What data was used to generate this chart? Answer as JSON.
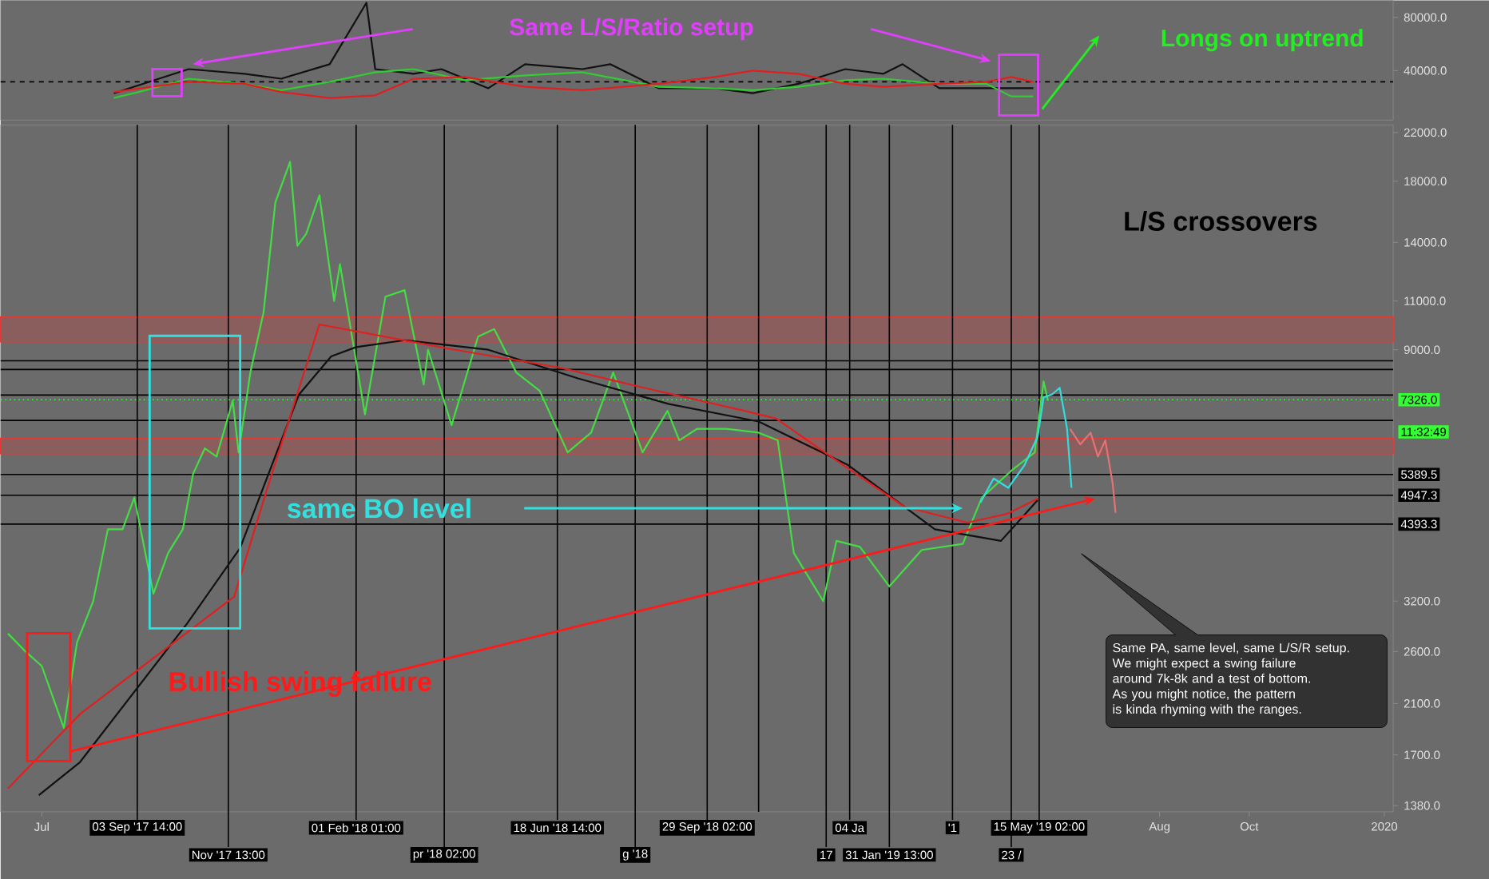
{
  "chart_data": [
    {
      "type": "line",
      "log": true,
      "xlim": [
        "2017-06-03",
        "2020-01-07"
      ],
      "ylim": [
        21000,
        100000
      ],
      "yticks": [
        {
          "value": 40000,
          "label": "40000.0"
        },
        {
          "value": 80000,
          "label": "80000.0"
        }
      ],
      "tick_labels": "y",
      "annotations": [
        "Same L/S/Ratio setup",
        "Longs on uptrend"
      ],
      "ref_lines": [
        {
          "axis": "y",
          "value": 34600,
          "line_style": "dashed",
          "color": "#000000"
        }
      ],
      "series": [
        {
          "color": "#111111",
          "x": [
            "2017-08-19",
            "2017-10-09",
            "2017-11-16",
            "2017-12-11",
            "2018-01-13",
            "2018-02-07",
            "2018-02-13",
            "2018-03-11",
            "2018-03-30",
            "2018-05-01",
            "2018-05-26",
            "2018-07-04",
            "2018-07-23",
            "2018-08-25",
            "2018-10-02",
            "2018-10-28",
            "2018-11-28",
            "2018-12-30",
            "2019-01-25",
            "2019-02-07",
            "2019-03-04",
            "2019-04-05",
            "2019-05-07"
          ],
          "values": [
            29800,
            40800,
            38400,
            36000,
            43500,
            96800,
            40800,
            38400,
            40800,
            31800,
            43500,
            40800,
            43500,
            31800,
            31800,
            29800,
            33700,
            40800,
            38400,
            43500,
            31800,
            31800,
            31800
          ]
        },
        {
          "color": "#33cc33",
          "x": [
            "2017-08-19",
            "2017-09-05",
            "2017-10-09",
            "2017-11-16",
            "2017-12-11",
            "2018-01-13",
            "2018-02-13",
            "2018-03-11",
            "2018-04-15",
            "2018-05-26",
            "2018-07-04",
            "2018-08-25",
            "2018-10-02",
            "2018-10-28",
            "2018-11-28",
            "2018-12-30",
            "2019-01-25",
            "2019-03-04",
            "2019-04-05",
            "2019-04-22",
            "2019-05-07"
          ],
          "values": [
            28000,
            30300,
            36000,
            33700,
            31000,
            34600,
            39200,
            40800,
            35300,
            37600,
            39200,
            32400,
            31800,
            31000,
            32400,
            35300,
            36000,
            33700,
            33700,
            28600,
            28600
          ]
        },
        {
          "color": "#e02020",
          "x": [
            "2017-08-19",
            "2017-10-09",
            "2017-11-16",
            "2017-12-11",
            "2018-01-13",
            "2018-02-13",
            "2018-03-11",
            "2018-04-15",
            "2018-05-26",
            "2018-07-04",
            "2018-08-25",
            "2018-10-02",
            "2018-10-28",
            "2018-11-28",
            "2018-12-30",
            "2019-01-25",
            "2019-03-04",
            "2019-04-05",
            "2019-04-22",
            "2019-05-07"
          ],
          "values": [
            30300,
            34600,
            33700,
            30300,
            28000,
            29000,
            36000,
            36800,
            32400,
            31000,
            33700,
            36800,
            40000,
            38400,
            33700,
            32400,
            33700,
            34600,
            36800,
            34600
          ]
        }
      ]
    },
    {
      "type": "line",
      "log": true,
      "xlim": [
        "2017-06-03",
        "2020-01-07"
      ],
      "ylim": [
        1345,
        22700
      ],
      "xticks": [
        {
          "value": "2017-07-01",
          "label": "Jul"
        },
        {
          "value": "2019-08-01",
          "label": "Aug"
        },
        {
          "value": "2019-10-01",
          "label": "Oct"
        },
        {
          "value": "2020-01-01",
          "label": "2020"
        }
      ],
      "yticks": [
        {
          "value": 1380,
          "label": "1380.0"
        },
        {
          "value": 1700,
          "label": "1700.0"
        },
        {
          "value": 2100,
          "label": "2100.0"
        },
        {
          "value": 2600,
          "label": "2600.0"
        },
        {
          "value": 3200,
          "label": "3200.0"
        },
        {
          "value": 9000,
          "label": "9000.0"
        },
        {
          "value": 11000,
          "label": "11000.0"
        },
        {
          "value": 14000,
          "label": "14000.0"
        },
        {
          "value": 18000,
          "label": "18000.0"
        },
        {
          "value": 22000,
          "label": "22000.0"
        }
      ],
      "annotations": [
        "L/S crossovers",
        "same BO level",
        "Bullish swing failure",
        "Same PA, same level, same L/S/R setup.",
        "We might expect a swing failure",
        " around 7k-8k and a test of bottom.",
        "As you might notice, the pattern",
        "is kinda rhyming with the ranges.",
        "11:32:49"
      ],
      "ref_lines": [
        {
          "axis": "x",
          "value": "2017-09-04",
          "label": "03 Sep '17 14:00",
          "color": "#000000"
        },
        {
          "axis": "x",
          "value": "2017-11-05",
          "label": "Nov '17 13:00",
          "color": "#000000"
        },
        {
          "axis": "x",
          "value": "2018-01-31",
          "label": "01 Feb '18 01:00",
          "color": "#000000"
        },
        {
          "axis": "x",
          "value": "2018-04-01",
          "label": "pr '18 02:00",
          "color": "#000000"
        },
        {
          "axis": "x",
          "value": "2018-06-17",
          "label": "18 Jun '18 14:00",
          "color": "#000000"
        },
        {
          "axis": "x",
          "value": "2018-08-09",
          "label": "g '18",
          "color": "#000000"
        },
        {
          "axis": "x",
          "value": "2018-09-27",
          "label": "29 Sep '18 02:00",
          "color": "#000000"
        },
        {
          "axis": "x",
          "value": "2018-11-01",
          "color": "#000000"
        },
        {
          "axis": "x",
          "value": "2018-12-17",
          "label": "17",
          "color": "#000000"
        },
        {
          "axis": "x",
          "value": "2019-01-02",
          "label": "04 Ja",
          "color": "#000000"
        },
        {
          "axis": "x",
          "value": "2019-01-29",
          "label": "31 Jan '19 13:00",
          "color": "#000000"
        },
        {
          "axis": "x",
          "value": "2019-03-13",
          "label": "'1",
          "color": "#000000"
        },
        {
          "axis": "x",
          "value": "2019-04-22",
          "label": "23 /",
          "color": "#000000"
        },
        {
          "axis": "x",
          "value": "2019-05-11",
          "label": "15 May '19 02:00",
          "color": "#000000"
        },
        {
          "axis": "y",
          "value": 8600,
          "color": "#000000"
        },
        {
          "axis": "y",
          "value": 8300,
          "color": "#000000"
        },
        {
          "axis": "y",
          "value": 7470,
          "color": "#000000"
        },
        {
          "axis": "y",
          "value": 6730,
          "color": "#000000"
        },
        {
          "axis": "y",
          "value": 7326.0,
          "label": "7326.0",
          "color": "#33ff33",
          "line_style": "dotted"
        },
        {
          "axis": "y",
          "value": 5389.5,
          "label": "5389.5",
          "color": "#000000"
        },
        {
          "axis": "y",
          "value": 4947.3,
          "label": "4947.3",
          "color": "#000000"
        },
        {
          "axis": "y",
          "value": 4393.3,
          "label": "4393.3",
          "color": "#000000"
        }
      ],
      "bands": [
        {
          "axis": "y",
          "from": 9300,
          "to": 10300,
          "color": "#e53935"
        },
        {
          "axis": "y",
          "from": 5870,
          "to": 6250,
          "color": "#e53935"
        }
      ],
      "series": [
        {
          "color": "#44dd44",
          "x": [
            "2017-06-08",
            "2017-06-20",
            "2017-07-01",
            "2017-07-16",
            "2017-07-25",
            "2017-08-05",
            "2017-08-15",
            "2017-08-25",
            "2017-09-02",
            "2017-09-15",
            "2017-09-25",
            "2017-10-05",
            "2017-10-12",
            "2017-10-20",
            "2017-10-28",
            "2017-11-08",
            "2017-11-12",
            "2017-11-20",
            "2017-11-29",
            "2017-12-07",
            "2017-12-17",
            "2017-12-22",
            "2017-12-28",
            "2018-01-06",
            "2018-01-16",
            "2018-01-20",
            "2018-02-06",
            "2018-02-20",
            "2018-03-05",
            "2018-03-18",
            "2018-03-21",
            "2018-04-06",
            "2018-04-24",
            "2018-05-05",
            "2018-05-20",
            "2018-06-05",
            "2018-06-24",
            "2018-07-10",
            "2018-07-25",
            "2018-08-14",
            "2018-08-31",
            "2018-09-08",
            "2018-09-20",
            "2018-10-10",
            "2018-11-01",
            "2018-11-14",
            "2018-11-25",
            "2018-12-15",
            "2018-12-24",
            "2019-01-09",
            "2019-01-29",
            "2019-02-20",
            "2019-03-20",
            "2019-04-02",
            "2019-04-23",
            "2019-05-08",
            "2019-05-14",
            "2019-05-17"
          ],
          "values": [
            2800,
            2600,
            2450,
            1900,
            2700,
            3200,
            4300,
            4300,
            4900,
            3300,
            3900,
            4300,
            5400,
            6000,
            5800,
            7300,
            5900,
            8200,
            10500,
            16500,
            19500,
            13800,
            14500,
            17000,
            11000,
            12800,
            6900,
            11200,
            11500,
            7800,
            9000,
            6600,
            9500,
            9800,
            8200,
            7600,
            5900,
            6400,
            8200,
            5900,
            7000,
            6200,
            6500,
            6500,
            6400,
            6200,
            3900,
            3200,
            4100,
            4000,
            3400,
            3950,
            4050,
            4900,
            5500,
            5900,
            7900,
            7300
          ]
        },
        {
          "color": "#111111",
          "x": [
            "2017-06-29",
            "2017-07-27",
            "2017-10-08",
            "2017-11-13",
            "2017-12-05",
            "2017-12-23",
            "2018-01-14",
            "2018-01-31",
            "2018-03-05",
            "2018-05-01",
            "2018-07-01",
            "2018-09-01",
            "2018-11-01",
            "2019-01-01",
            "2019-03-01",
            "2019-04-15",
            "2019-05-10"
          ],
          "values": [
            1440,
            1650,
            2920,
            3980,
            5630,
            7480,
            8760,
            9100,
            9360,
            9000,
            8000,
            7200,
            6700,
            5600,
            4300,
            4100,
            4850
          ]
        },
        {
          "color": "#e02020",
          "x": [
            "2017-06-08",
            "2017-07-27",
            "2017-11-09",
            "2017-12-01",
            "2018-01-06",
            "2018-04-03",
            "2018-06-18",
            "2018-08-12",
            "2018-10-22",
            "2018-11-13",
            "2018-12-16",
            "2019-02-08",
            "2019-03-23",
            "2019-04-19",
            "2019-05-10"
          ],
          "values": [
            1480,
            2010,
            3260,
            5040,
            9990,
            9050,
            8370,
            7730,
            7005,
            6780,
            5900,
            4720,
            4420,
            4580,
            4880
          ]
        },
        {
          "color": "#33dddd",
          "x": [
            "2019-04-01",
            "2019-04-10",
            "2019-04-20",
            "2019-05-01",
            "2019-05-10",
            "2019-05-14",
            "2019-05-20",
            "2019-05-25",
            "2019-05-30",
            "2019-06-02"
          ],
          "values": [
            4800,
            5300,
            5100,
            5600,
            6300,
            7400,
            7500,
            7700,
            6500,
            5100
          ]
        },
        {
          "color": "#e57373",
          "x": [
            "2019-06-01",
            "2019-06-08",
            "2019-06-15",
            "2019-06-20",
            "2019-06-25",
            "2019-06-30",
            "2019-07-02"
          ],
          "values": [
            6500,
            6100,
            6400,
            5800,
            6200,
            5200,
            4600
          ]
        }
      ]
    }
  ]
}
